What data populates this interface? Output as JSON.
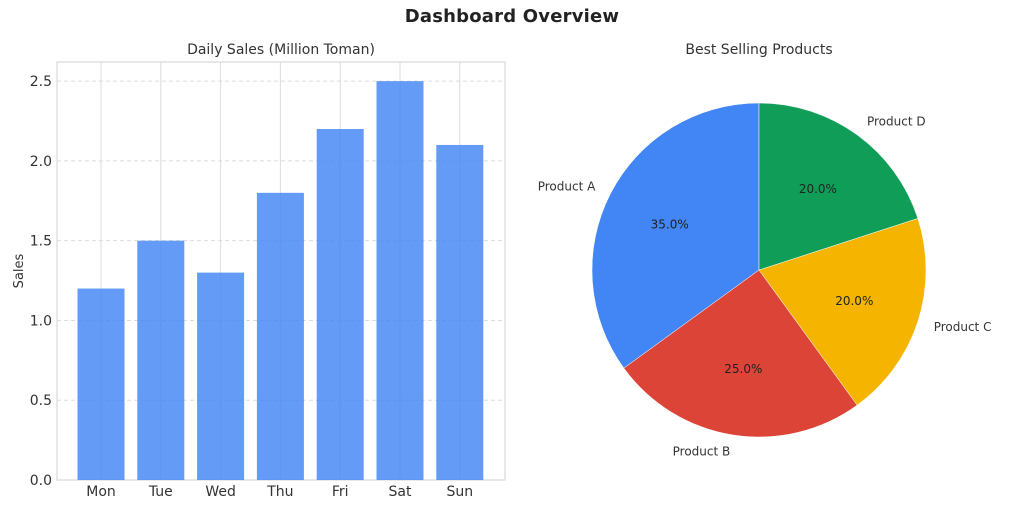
{
  "title": "Dashboard Overview",
  "chart_data": [
    {
      "type": "bar",
      "title": "Daily Sales (Million Toman)",
      "xlabel": "",
      "ylabel": "Sales",
      "categories": [
        "Mon",
        "Tue",
        "Wed",
        "Thu",
        "Fri",
        "Sat",
        "Sun"
      ],
      "values": [
        1.2,
        1.5,
        1.3,
        1.8,
        2.2,
        2.5,
        2.1
      ],
      "ylim": [
        0,
        2.62
      ],
      "yticks": [
        "0.0",
        "0.5",
        "1.0",
        "1.5",
        "2.0",
        "2.5"
      ],
      "bar_color": "#4285f4",
      "grid": true,
      "legend": "none"
    },
    {
      "type": "pie",
      "title": "Best Selling Products",
      "slices": [
        {
          "label": "Product A",
          "value": 35,
          "pct_label": "35.0%",
          "color": "#4285f4"
        },
        {
          "label": "Product B",
          "value": 25,
          "pct_label": "25.0%",
          "color": "#db4437"
        },
        {
          "label": "Product C",
          "value": 20,
          "pct_label": "20.0%",
          "color": "#f4b400"
        },
        {
          "label": "Product D",
          "value": 20,
          "pct_label": "20.0%",
          "color": "#0f9d58"
        }
      ],
      "start_angle_deg": 90,
      "direction": "counterclockwise"
    }
  ]
}
